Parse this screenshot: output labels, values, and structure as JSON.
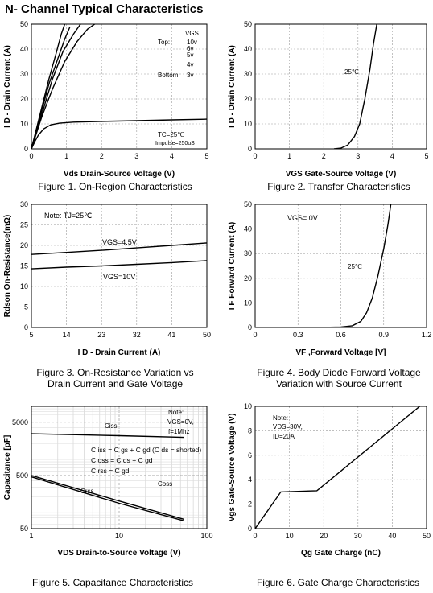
{
  "page": {
    "title": "N- Channel Typical Characteristics"
  },
  "chart_data": [
    {
      "type": "line",
      "caption": "Figure 1. On-Region Characteristics",
      "xlabel": "Vds Drain-Source Voltage (V)",
      "ylabel": "I D - Drain Current (A)",
      "xlim": [
        0,
        5
      ],
      "ylim": [
        0,
        50
      ],
      "xticks": [
        "0",
        "1",
        "2",
        "3",
        "4",
        "5"
      ],
      "yticks": [
        "0",
        "10",
        "20",
        "30",
        "40",
        "50"
      ],
      "legend": {
        "header": "VGS",
        "top_label": "Top:",
        "bottom_label": "Bottom:",
        "entries": [
          "10v",
          "6v",
          "5v",
          "4v",
          "3v"
        ]
      },
      "annotations": [
        "TC=25℃",
        "Impulse=250uS"
      ],
      "series": [
        {
          "name": "10v",
          "points": [
            [
              0,
              0
            ],
            [
              0.25,
              14
            ],
            [
              0.5,
              28
            ],
            [
              0.7,
              38
            ],
            [
              0.85,
              46
            ],
            [
              0.95,
              50
            ]
          ]
        },
        {
          "name": "6v",
          "points": [
            [
              0,
              0
            ],
            [
              0.25,
              13
            ],
            [
              0.5,
              26
            ],
            [
              0.75,
              36
            ],
            [
              0.95,
              44
            ],
            [
              1.1,
              49
            ]
          ]
        },
        {
          "name": "5v",
          "points": [
            [
              0,
              0
            ],
            [
              0.3,
              14
            ],
            [
              0.6,
              28
            ],
            [
              0.9,
              39
            ],
            [
              1.2,
              46
            ],
            [
              1.4,
              50
            ]
          ]
        },
        {
          "name": "4v",
          "points": [
            [
              0,
              0
            ],
            [
              0.3,
              13
            ],
            [
              0.6,
              24
            ],
            [
              0.95,
              35
            ],
            [
              1.3,
              43
            ],
            [
              1.6,
              48
            ],
            [
              1.8,
              50
            ]
          ]
        },
        {
          "name": "3v",
          "points": [
            [
              0,
              0
            ],
            [
              0.1,
              3
            ],
            [
              0.2,
              5.5
            ],
            [
              0.35,
              8
            ],
            [
              0.55,
              9.6
            ],
            [
              0.8,
              10.3
            ],
            [
              1.2,
              10.7
            ],
            [
              2,
              11
            ],
            [
              3,
              11.3
            ],
            [
              4,
              11.6
            ],
            [
              5,
              11.9
            ]
          ]
        }
      ]
    },
    {
      "type": "line",
      "caption": "Figure 2. Transfer Characteristics",
      "xlabel": "VGS Gate-Source Voltage (V)",
      "ylabel": "I D - Drain Current (A)",
      "xlim": [
        0,
        5
      ],
      "ylim": [
        0,
        50
      ],
      "xticks": [
        "0",
        "1",
        "2",
        "3",
        "4",
        "5"
      ],
      "yticks": [
        "0",
        "10",
        "20",
        "30",
        "40",
        "50"
      ],
      "annotations": [
        "25℃"
      ],
      "series": [
        {
          "name": "25℃",
          "points": [
            [
              2.3,
              0
            ],
            [
              2.5,
              0.3
            ],
            [
              2.7,
              1.5
            ],
            [
              2.9,
              5
            ],
            [
              3.05,
              10
            ],
            [
              3.2,
              20
            ],
            [
              3.35,
              32
            ],
            [
              3.45,
              42
            ],
            [
              3.55,
              50
            ]
          ]
        }
      ]
    },
    {
      "type": "line",
      "caption": "Figure 3. On-Resistance Variation vs Drain Current and Gate Voltage",
      "xlabel": "I D - Drain Current (A)",
      "ylabel": "Rdson On-Resistance(mΩ)",
      "xlim": [
        5,
        50
      ],
      "ylim": [
        0,
        30
      ],
      "xticks": [
        "5",
        "14",
        "23",
        "32",
        "41",
        "50"
      ],
      "yticks": [
        "0",
        "5",
        "10",
        "15",
        "20",
        "25",
        "30"
      ],
      "annotations": [
        "Note: TJ=25℃",
        "VGS=4.5V",
        "VGS=10V"
      ],
      "series": [
        {
          "name": "VGS=4.5V",
          "points": [
            [
              5,
              17.8
            ],
            [
              14,
              18.3
            ],
            [
              23,
              18.8
            ],
            [
              32,
              19.4
            ],
            [
              41,
              20
            ],
            [
              50,
              20.6
            ]
          ]
        },
        {
          "name": "VGS=10V",
          "points": [
            [
              5,
              14.3
            ],
            [
              14,
              14.7
            ],
            [
              23,
              15
            ],
            [
              32,
              15.4
            ],
            [
              41,
              15.8
            ],
            [
              50,
              16.3
            ]
          ]
        }
      ]
    },
    {
      "type": "line",
      "caption": "Figure 4. Body Diode Forward Voltage Variation with Source Current",
      "xlabel": "VF ,Forward Voltage [V]",
      "ylabel": "I F Forward Current (A)",
      "xlim": [
        0,
        1.2
      ],
      "ylim": [
        0,
        50
      ],
      "xticks": [
        "0",
        "0.3",
        "0.6",
        "0.9",
        "1.2"
      ],
      "yticks": [
        "0",
        "10",
        "20",
        "30",
        "40",
        "50"
      ],
      "annotations": [
        "VGS= 0V",
        "25℃"
      ],
      "series": [
        {
          "name": "25℃",
          "points": [
            [
              0.45,
              0
            ],
            [
              0.6,
              0.2
            ],
            [
              0.68,
              0.7
            ],
            [
              0.74,
              2.5
            ],
            [
              0.78,
              6
            ],
            [
              0.82,
              12
            ],
            [
              0.86,
              21
            ],
            [
              0.9,
              32
            ],
            [
              0.93,
              42
            ],
            [
              0.95,
              50
            ]
          ]
        }
      ]
    },
    {
      "type": "line",
      "caption": "Figure 5. Capacitance Characteristics",
      "xlabel": "VDS Drain-to-Source Voltage (V)",
      "ylabel": "Capacitance [pF]",
      "xscale": "log",
      "yscale": "log",
      "xlim": [
        1,
        100
      ],
      "ylim": [
        50,
        10000
      ],
      "xticks": [
        "1",
        "10",
        "100"
      ],
      "yticks": [
        "50",
        "500",
        "5000"
      ],
      "annotations": [
        "Note:",
        "VGS=0V,",
        "f=1Mhz",
        "C iss = C gs + C gd (C ds = shorted)",
        "C oss = C ds + C gd",
        "C rss = C gd"
      ],
      "series": [
        {
          "name": "Ciss",
          "points": [
            [
              1,
              3050
            ],
            [
              10,
              2800
            ],
            [
              55,
              2600
            ]
          ]
        },
        {
          "name": "Coss",
          "points": [
            [
              1,
              500
            ],
            [
              10,
              165
            ],
            [
              55,
              75
            ]
          ]
        },
        {
          "name": "Crss",
          "points": [
            [
              1,
              470
            ],
            [
              10,
              150
            ],
            [
              55,
              70
            ]
          ]
        }
      ]
    },
    {
      "type": "line",
      "caption": "Figure 6. Gate Charge Characteristics",
      "xlabel": "Qg Gate Charge (nC)",
      "ylabel": "Vgs Gate-Source Voltage (V)",
      "xlim": [
        0,
        50
      ],
      "ylim": [
        0,
        10
      ],
      "xticks": [
        "0",
        "10",
        "20",
        "30",
        "40",
        "50"
      ],
      "yticks": [
        "0",
        "2",
        "4",
        "6",
        "8",
        "10"
      ],
      "annotations": [
        "Note:",
        "VDS=30V,",
        "ID=20A"
      ],
      "series": [
        {
          "name": "Vgs",
          "points": [
            [
              0,
              0
            ],
            [
              7.5,
              3
            ],
            [
              18,
              3.1
            ],
            [
              48,
              10
            ]
          ]
        }
      ]
    }
  ]
}
